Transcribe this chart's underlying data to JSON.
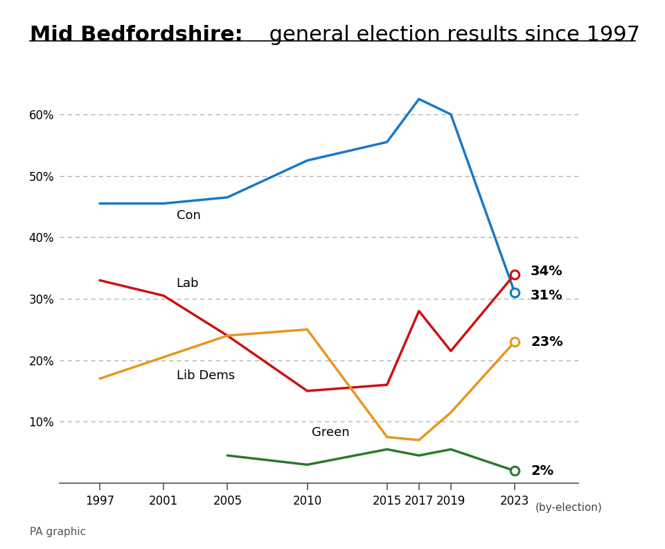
{
  "title_bold": "Mid Bedfordshire:",
  "title_regular": " general election results since 1997",
  "years": [
    1997,
    2001,
    2005,
    2010,
    2015,
    2017,
    2019,
    2023
  ],
  "con": [
    45.5,
    45.5,
    46.5,
    52.5,
    55.5,
    62.5,
    60.0,
    31.0
  ],
  "lab": [
    33.0,
    30.5,
    24.0,
    15.0,
    16.0,
    28.0,
    21.5,
    34.0
  ],
  "libdem": [
    17.0,
    20.5,
    24.0,
    25.0,
    7.5,
    7.0,
    11.5,
    23.0
  ],
  "green": [
    null,
    null,
    4.5,
    3.0,
    5.5,
    4.5,
    5.5,
    2.0
  ],
  "con_color": "#1878c8",
  "lab_color": "#cc1111",
  "libdem_color": "#e8961e",
  "green_color": "#2a7a2a",
  "con_label_final": "31%",
  "lab_label_final": "34%",
  "libdem_label_final": "23%",
  "green_label_final": "2%",
  "yticks": [
    10,
    20,
    30,
    40,
    50,
    60
  ],
  "ylim": [
    0,
    67
  ],
  "xlim_left": 1994.5,
  "xlim_right": 2027,
  "xtick_years": [
    1997,
    2001,
    2005,
    2010,
    2015,
    2017,
    2019,
    2023
  ],
  "footer": "PA graphic",
  "bg_color": "#ffffff",
  "line_width": 2.5,
  "marker_size": 9,
  "label_fontsize": 14,
  "series_label_fontsize": 13,
  "title_bold_fontsize": 22,
  "title_reg_fontsize": 22,
  "tick_fontsize": 12,
  "footer_fontsize": 11
}
